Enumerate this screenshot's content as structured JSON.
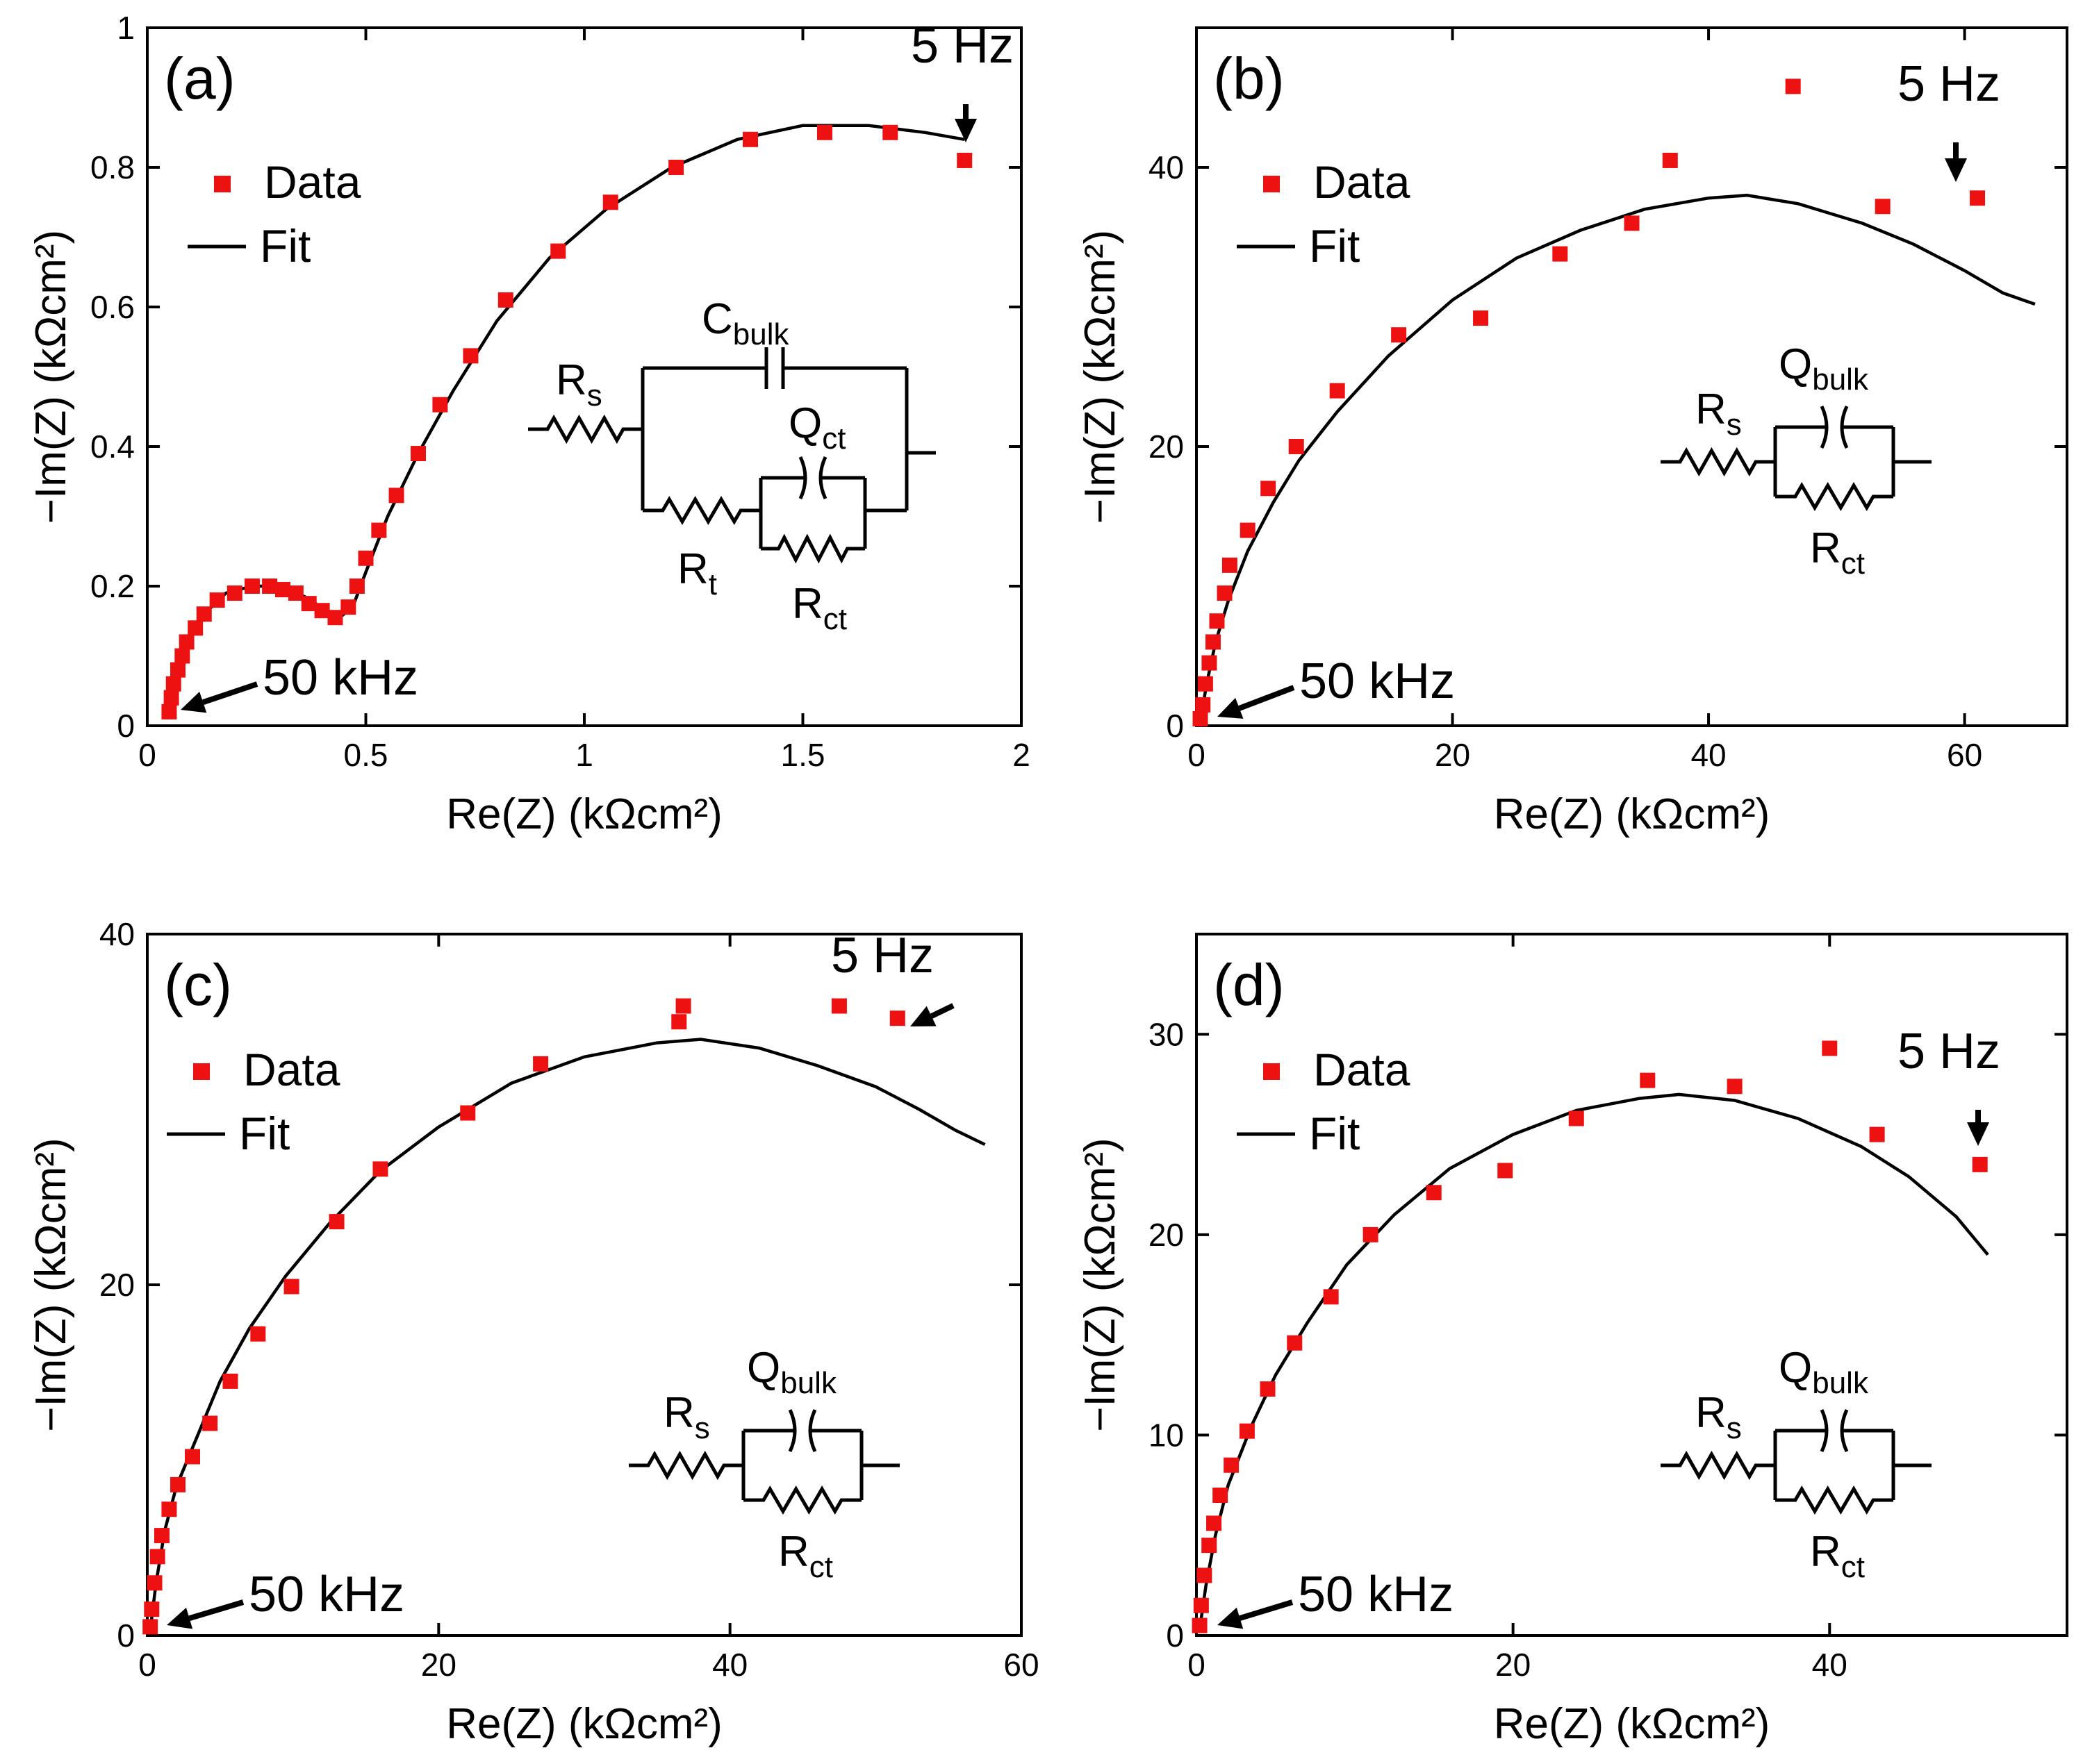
{
  "chart_data": [
    {
      "panel": "(a)",
      "type": "scatter",
      "xlabel": "Re(Z) (kΩcm²)",
      "ylabel": "−Im(Z) (kΩcm²)",
      "xlim": [
        0,
        2
      ],
      "ylim": [
        0,
        1
      ],
      "xticks": [
        0,
        0.5,
        1,
        1.5,
        2
      ],
      "xtick_labels": [
        "0",
        "0.5",
        "1",
        "1.5",
        "2"
      ],
      "yticks": [
        0,
        0.2,
        0.4,
        0.6,
        0.8,
        1
      ],
      "ytick_labels": [
        "0",
        "0.2",
        "0.4",
        "0.6",
        "0.8",
        "1"
      ],
      "legend": {
        "data_label": "Data",
        "fit_label": "Fit",
        "placement": "upper-left"
      },
      "annotations": {
        "low_freq": "5 Hz",
        "high_freq": "50 kHz"
      },
      "circuit": {
        "type": "Rs-(Cbulk||(Rt-(Qct||Rct)))",
        "labels": [
          {
            "main": "R",
            "sub": "s"
          },
          {
            "main": "C",
            "sub": "bulk"
          },
          {
            "main": "Q",
            "sub": "ct"
          },
          {
            "main": "R",
            "sub": "t"
          },
          {
            "main": "R",
            "sub": "ct"
          }
        ]
      },
      "series": [
        {
          "name": "Data",
          "style": "marker",
          "points": [
            [
              0.05,
              0.02
            ],
            [
              0.055,
              0.04
            ],
            [
              0.06,
              0.06
            ],
            [
              0.07,
              0.08
            ],
            [
              0.08,
              0.1
            ],
            [
              0.09,
              0.12
            ],
            [
              0.11,
              0.14
            ],
            [
              0.13,
              0.16
            ],
            [
              0.16,
              0.18
            ],
            [
              0.2,
              0.19
            ],
            [
              0.24,
              0.2
            ],
            [
              0.28,
              0.2
            ],
            [
              0.31,
              0.195
            ],
            [
              0.34,
              0.19
            ],
            [
              0.37,
              0.175
            ],
            [
              0.4,
              0.165
            ],
            [
              0.43,
              0.155
            ],
            [
              0.46,
              0.17
            ],
            [
              0.48,
              0.2
            ],
            [
              0.5,
              0.24
            ],
            [
              0.53,
              0.28
            ],
            [
              0.57,
              0.33
            ],
            [
              0.62,
              0.39
            ],
            [
              0.67,
              0.46
            ],
            [
              0.74,
              0.53
            ],
            [
              0.82,
              0.61
            ],
            [
              0.94,
              0.68
            ],
            [
              1.06,
              0.75
            ],
            [
              1.21,
              0.8
            ],
            [
              1.38,
              0.84
            ],
            [
              1.55,
              0.85
            ],
            [
              1.7,
              0.85
            ],
            [
              1.87,
              0.81
            ]
          ]
        },
        {
          "name": "Fit",
          "style": "line",
          "points": [
            [
              0.05,
              0.02
            ],
            [
              0.06,
              0.07
            ],
            [
              0.09,
              0.12
            ],
            [
              0.13,
              0.16
            ],
            [
              0.18,
              0.19
            ],
            [
              0.24,
              0.2
            ],
            [
              0.3,
              0.2
            ],
            [
              0.36,
              0.185
            ],
            [
              0.41,
              0.165
            ],
            [
              0.44,
              0.155
            ],
            [
              0.47,
              0.17
            ],
            [
              0.5,
              0.22
            ],
            [
              0.55,
              0.3
            ],
            [
              0.62,
              0.39
            ],
            [
              0.7,
              0.48
            ],
            [
              0.8,
              0.58
            ],
            [
              0.92,
              0.67
            ],
            [
              1.05,
              0.74
            ],
            [
              1.2,
              0.8
            ],
            [
              1.35,
              0.84
            ],
            [
              1.5,
              0.86
            ],
            [
              1.65,
              0.86
            ],
            [
              1.78,
              0.85
            ],
            [
              1.87,
              0.84
            ]
          ]
        }
      ]
    },
    {
      "panel": "(b)",
      "type": "scatter",
      "xlabel": "Re(Z) (kΩcm²)",
      "ylabel": "−Im(Z) (kΩcm²)",
      "xlim": [
        0,
        68
      ],
      "ylim": [
        0,
        50
      ],
      "xticks": [
        0,
        20,
        40,
        60
      ],
      "xtick_labels": [
        "0",
        "20",
        "40",
        "60"
      ],
      "yticks": [
        0,
        20,
        40
      ],
      "ytick_labels": [
        "0",
        "20",
        "40"
      ],
      "legend": {
        "data_label": "Data",
        "fit_label": "Fit",
        "placement": "upper-left"
      },
      "annotations": {
        "low_freq": "5 Hz",
        "high_freq": "50 kHz"
      },
      "circuit": {
        "type": "Rs-(Qbulk||Rct)",
        "labels": [
          {
            "main": "Q",
            "sub": "bulk"
          },
          {
            "main": "R",
            "sub": "s"
          },
          {
            "main": "R",
            "sub": "ct"
          }
        ]
      },
      "series": [
        {
          "name": "Data",
          "style": "marker",
          "points": [
            [
              0.3,
              0.5
            ],
            [
              0.5,
              1.5
            ],
            [
              0.7,
              3
            ],
            [
              1.0,
              4.5
            ],
            [
              1.3,
              6
            ],
            [
              1.6,
              7.5
            ],
            [
              2.2,
              9.5
            ],
            [
              2.6,
              11.5
            ],
            [
              4,
              14
            ],
            [
              5.6,
              17
            ],
            [
              7.8,
              20
            ],
            [
              11,
              24
            ],
            [
              15.8,
              28
            ],
            [
              22.2,
              29.2
            ],
            [
              28.4,
              33.8
            ],
            [
              34,
              36
            ],
            [
              37,
              40.5
            ],
            [
              46.6,
              45.8
            ],
            [
              53.6,
              37.2
            ],
            [
              61,
              37.8
            ]
          ]
        },
        {
          "name": "Fit",
          "style": "line",
          "points": [
            [
              0.3,
              0.3
            ],
            [
              0.8,
              3
            ],
            [
              1.5,
              6
            ],
            [
              2.5,
              9
            ],
            [
              4,
              12.5
            ],
            [
              6,
              16
            ],
            [
              8,
              19
            ],
            [
              11,
              22.5
            ],
            [
              15,
              26.5
            ],
            [
              20,
              30.5
            ],
            [
              25,
              33.5
            ],
            [
              30,
              35.5
            ],
            [
              35,
              37
            ],
            [
              40,
              37.8
            ],
            [
              43,
              38
            ],
            [
              47,
              37.4
            ],
            [
              52,
              36
            ],
            [
              56,
              34.5
            ],
            [
              60,
              32.6
            ],
            [
              63,
              31
            ],
            [
              65.5,
              30.2
            ]
          ]
        }
      ]
    },
    {
      "panel": "(c)",
      "type": "scatter",
      "xlabel": "Re(Z) (kΩcm²)",
      "ylabel": "−Im(Z) (kΩcm²)",
      "xlim": [
        0,
        60
      ],
      "ylim": [
        0,
        40
      ],
      "xticks": [
        0,
        20,
        40,
        60
      ],
      "xtick_labels": [
        "0",
        "20",
        "40",
        "60"
      ],
      "yticks": [
        0,
        20,
        40
      ],
      "ytick_labels": [
        "0",
        "20",
        "40"
      ],
      "legend": {
        "data_label": "Data",
        "fit_label": "Fit",
        "placement": "upper-left"
      },
      "annotations": {
        "low_freq": "5 Hz",
        "high_freq": "50 kHz"
      },
      "circuit": {
        "type": "Rs-(Qbulk||Rct)",
        "labels": [
          {
            "main": "Q",
            "sub": "bulk"
          },
          {
            "main": "R",
            "sub": "s"
          },
          {
            "main": "R",
            "sub": "ct"
          }
        ]
      },
      "series": [
        {
          "name": "Data",
          "style": "marker",
          "points": [
            [
              0.2,
              0.5
            ],
            [
              0.3,
              1.5
            ],
            [
              0.5,
              3
            ],
            [
              0.7,
              4.5
            ],
            [
              1,
              5.7
            ],
            [
              1.5,
              7.2
            ],
            [
              2.1,
              8.6
            ],
            [
              3.1,
              10.2
            ],
            [
              4.3,
              12.1
            ],
            [
              5.7,
              14.5
            ],
            [
              7.6,
              17.2
            ],
            [
              9.9,
              19.9
            ],
            [
              13,
              23.6
            ],
            [
              16,
              26.6
            ],
            [
              22,
              29.8
            ],
            [
              27,
              32.6
            ],
            [
              36.5,
              35
            ],
            [
              36.8,
              35.9
            ],
            [
              47.5,
              35.9
            ],
            [
              51.5,
              35.2
            ]
          ]
        },
        {
          "name": "Fit",
          "style": "line",
          "points": [
            [
              0.2,
              0.3
            ],
            [
              0.6,
              3
            ],
            [
              1.2,
              6
            ],
            [
              2,
              8.5
            ],
            [
              3.5,
              11.5
            ],
            [
              5,
              14.5
            ],
            [
              7,
              17.5
            ],
            [
              9.5,
              20.5
            ],
            [
              12.5,
              23.5
            ],
            [
              16,
              26.5
            ],
            [
              20,
              29
            ],
            [
              25,
              31.5
            ],
            [
              30,
              33
            ],
            [
              35,
              33.8
            ],
            [
              38,
              34
            ],
            [
              42,
              33.5
            ],
            [
              46,
              32.5
            ],
            [
              50,
              31.3
            ],
            [
              53,
              30
            ],
            [
              55.5,
              28.8
            ],
            [
              57.5,
              28
            ]
          ]
        }
      ]
    },
    {
      "panel": "(d)",
      "type": "scatter",
      "xlabel": "Re(Z) (kΩcm²)",
      "ylabel": "−Im(Z) (kΩcm²)",
      "xlim": [
        0,
        55
      ],
      "ylim": [
        0,
        35
      ],
      "xticks": [
        0,
        20,
        40
      ],
      "xtick_labels": [
        "0",
        "20",
        "40"
      ],
      "yticks": [
        0,
        10,
        20,
        30
      ],
      "ytick_labels": [
        "0",
        "10",
        "20",
        "30"
      ],
      "legend": {
        "data_label": "Data",
        "fit_label": "Fit",
        "placement": "upper-left"
      },
      "annotations": {
        "low_freq": "5 Hz",
        "high_freq": "50 kHz"
      },
      "circuit": {
        "type": "Rs-(Qbulk||Rct)",
        "labels": [
          {
            "main": "Q",
            "sub": "bulk"
          },
          {
            "main": "R",
            "sub": "s"
          },
          {
            "main": "R",
            "sub": "ct"
          }
        ]
      },
      "series": [
        {
          "name": "Data",
          "style": "marker",
          "points": [
            [
              0.2,
              0.5
            ],
            [
              0.3,
              1.5
            ],
            [
              0.5,
              3
            ],
            [
              0.8,
              4.5
            ],
            [
              1.1,
              5.6
            ],
            [
              1.5,
              7
            ],
            [
              2.2,
              8.5
            ],
            [
              3.2,
              10.2
            ],
            [
              4.5,
              12.3
            ],
            [
              6.2,
              14.6
            ],
            [
              8.5,
              16.9
            ],
            [
              11,
              20
            ],
            [
              15,
              22.1
            ],
            [
              19.5,
              23.2
            ],
            [
              24,
              25.8
            ],
            [
              28.5,
              27.7
            ],
            [
              34,
              27.4
            ],
            [
              40,
              29.3
            ],
            [
              43,
              25
            ],
            [
              49.5,
              23.5
            ]
          ]
        },
        {
          "name": "Fit",
          "style": "line",
          "points": [
            [
              0.2,
              0.3
            ],
            [
              0.6,
              2.5
            ],
            [
              1.2,
              5
            ],
            [
              2,
              7.5
            ],
            [
              3.5,
              10.5
            ],
            [
              5,
              13
            ],
            [
              7,
              15.6
            ],
            [
              9.5,
              18.5
            ],
            [
              12.5,
              21
            ],
            [
              16,
              23.3
            ],
            [
              20,
              25
            ],
            [
              24,
              26.2
            ],
            [
              28,
              26.8
            ],
            [
              30.5,
              27
            ],
            [
              34,
              26.7
            ],
            [
              38,
              25.8
            ],
            [
              42,
              24.4
            ],
            [
              45,
              22.9
            ],
            [
              48,
              20.9
            ],
            [
              50,
              19
            ]
          ]
        }
      ]
    }
  ],
  "colors": {
    "marker": "#ee1111",
    "line": "#000000",
    "frame": "#000000"
  }
}
